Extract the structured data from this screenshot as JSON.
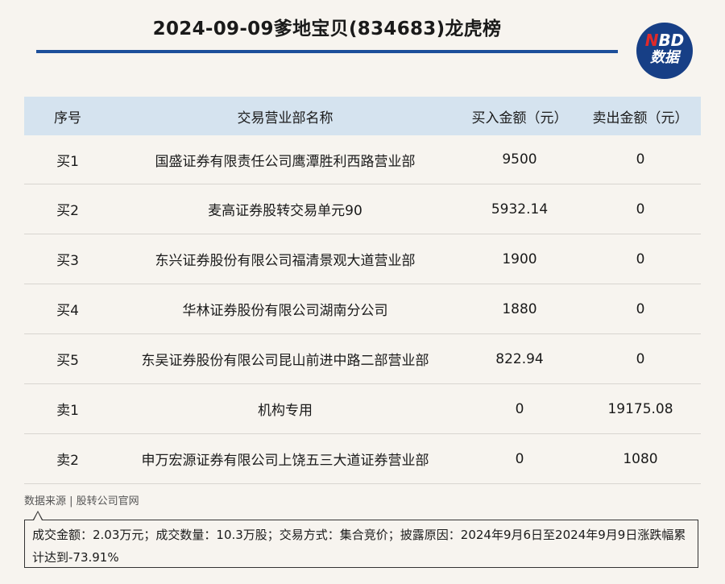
{
  "header": {
    "title": "2024-09-09爹地宝贝(834683)龙虎榜",
    "logo_line1_n": "N",
    "logo_line1_rest": "BD",
    "logo_line2": "数据"
  },
  "table": {
    "columns": [
      "序号",
      "交易营业部名称",
      "买入金额（元）",
      "卖出金额（元）"
    ],
    "rows": [
      [
        "买1",
        "国盛证券有限责任公司鹰潭胜利西路营业部",
        "9500",
        "0"
      ],
      [
        "买2",
        "麦高证券股转交易单元90",
        "5932.14",
        "0"
      ],
      [
        "买3",
        "东兴证券股份有限公司福清景观大道营业部",
        "1900",
        "0"
      ],
      [
        "买4",
        "华林证券股份有限公司湖南分公司",
        "1880",
        "0"
      ],
      [
        "买5",
        "东吴证券股份有限公司昆山前进中路二部营业部",
        "822.94",
        "0"
      ],
      [
        "卖1",
        "机构专用",
        "0",
        "19175.08"
      ],
      [
        "卖2",
        "申万宏源证券有限公司上饶五三大道证券营业部",
        "0",
        "1080"
      ]
    ]
  },
  "footer": {
    "source": "数据来源 | 股转公司官网",
    "note": "成交金额：2.03万元；成交数量：10.3万股；交易方式：集合竞价；披露原因：2024年9月6日至2024年9月9日涨跌幅累计达到-73.91%"
  },
  "colors": {
    "accent": "#1d4f9a",
    "header_bg": "#d5e3ef",
    "logo_bg": "#173f86",
    "logo_red": "#e12a2a"
  }
}
